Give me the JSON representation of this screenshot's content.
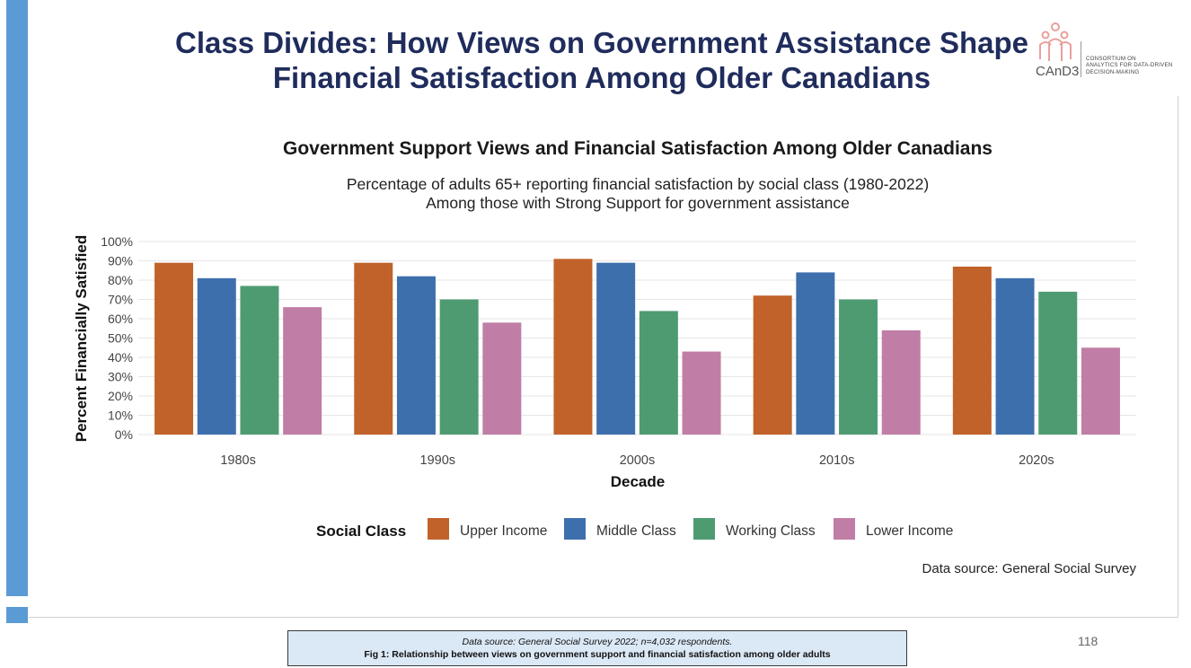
{
  "slide": {
    "title_line1": "Class Divides: How Views on Government Assistance Shape",
    "title_line2": "Financial Satisfaction Among Older Canadians",
    "page_number": "118",
    "accent_color": "#5b9bd5",
    "title_color": "#1f2c5c"
  },
  "logo": {
    "name": "CAnD3",
    "line1": "CONSORTIUM ON",
    "line2": "ANALYTICS FOR DATA-DRIVEN",
    "line3": "DECISION-MAKING",
    "color": "#e8a09a"
  },
  "caption": {
    "source": "Data source: General Social Survey 2022; n=4,032 respondents.",
    "figure": "Fig 1: Relationship between views on government support and financial satisfaction among older adults"
  },
  "chart_data": {
    "type": "bar",
    "title": "Government Support Views and Financial Satisfaction Among Older Canadians",
    "subtitle_line1": "Percentage of adults 65+ reporting financial satisfaction by social class (1980-2022)",
    "subtitle_line2": "Among those with Strong Support for government assistance",
    "xlabel": "Decade",
    "ylabel": "Percent Financially Satisfied",
    "ylim": [
      0,
      100
    ],
    "y_ticks": [
      "0%",
      "10%",
      "20%",
      "30%",
      "40%",
      "50%",
      "60%",
      "70%",
      "80%",
      "90%",
      "100%"
    ],
    "categories": [
      "1980s",
      "1990s",
      "2000s",
      "2010s",
      "2020s"
    ],
    "legend_title": "Social Class",
    "legend_position": "bottom",
    "grid": true,
    "source_note": "Data source: General Social Survey",
    "series": [
      {
        "name": "Upper Income",
        "color": "#c1622a",
        "values": [
          89,
          89,
          91,
          72,
          87
        ]
      },
      {
        "name": "Middle Class",
        "color": "#3e6fad",
        "values": [
          81,
          82,
          89,
          84,
          81
        ]
      },
      {
        "name": "Working Class",
        "color": "#4e9b72",
        "values": [
          77,
          70,
          64,
          70,
          74
        ]
      },
      {
        "name": "Lower Income",
        "color": "#c07ea6",
        "values": [
          66,
          58,
          43,
          54,
          45
        ]
      }
    ]
  }
}
